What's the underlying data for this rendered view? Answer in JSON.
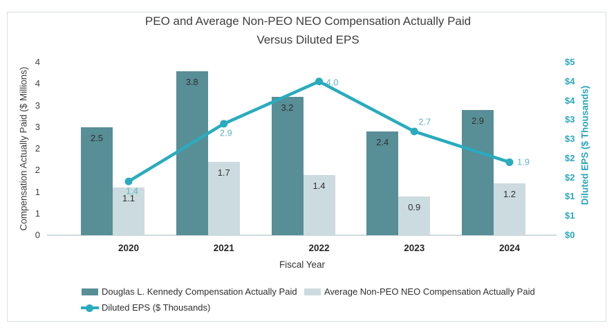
{
  "title": {
    "line1": "PEO and Average Non-PEO NEO Compensation Actually Paid",
    "line2": "Versus Diluted EPS"
  },
  "chart_data": {
    "type": "combo-bar-line",
    "categories": [
      "2020",
      "2021",
      "2022",
      "2023",
      "2024"
    ],
    "series": [
      {
        "name": "Douglas L. Kennedy Compensation Actually Paid",
        "type": "bar",
        "axis": "left",
        "color": "#588e96",
        "values": [
          2.5,
          3.8,
          3.2,
          2.4,
          2.9
        ],
        "labels": [
          "2.5",
          "3.8",
          "3.2",
          "2.4",
          "2.9"
        ]
      },
      {
        "name": "Average Non-PEO NEO Compensation Actually Paid",
        "type": "bar",
        "axis": "left",
        "color": "#ccdbdf",
        "values": [
          1.1,
          1.7,
          1.4,
          0.9,
          1.2
        ],
        "labels": [
          "1.1",
          "1.7",
          "1.4",
          "0.9",
          "1.2"
        ]
      },
      {
        "name": "Diluted EPS ($ Thousands)",
        "type": "line",
        "axis": "right",
        "color": "#2aabbe",
        "label_color": "#5eb5c5",
        "values": [
          1.4,
          2.9,
          4.0,
          2.7,
          1.9
        ],
        "labels": [
          "1.4",
          "2.9",
          "4.0",
          "2.7",
          "1.9"
        ]
      }
    ],
    "xlabel": "Fiscal Year",
    "left_axis": {
      "title": "Compensation Actually Paid ($ Millions)",
      "min": 0,
      "max": 4,
      "tick_labels": [
        "4",
        "4",
        "3",
        "3",
        "2",
        "2",
        "1",
        "1",
        "0"
      ]
    },
    "right_axis": {
      "title": "Diluted EPS ($ Thousands)",
      "min": 0,
      "max": 4.5,
      "tick_labels": [
        "$5",
        "$4",
        "$4",
        "$3",
        "$3",
        "$2",
        "$2",
        "$1",
        "$1",
        "$0"
      ]
    },
    "grid": false,
    "legend_position": "bottom-left"
  },
  "colors": {
    "title_text": "#3d3d3d",
    "axis_text": "#3f3f3f",
    "right_axis_text": "#2aa6bb",
    "bar_label_text": "#303030",
    "baseline": "#cfd9db",
    "frame_border": "#d9dfe1"
  }
}
